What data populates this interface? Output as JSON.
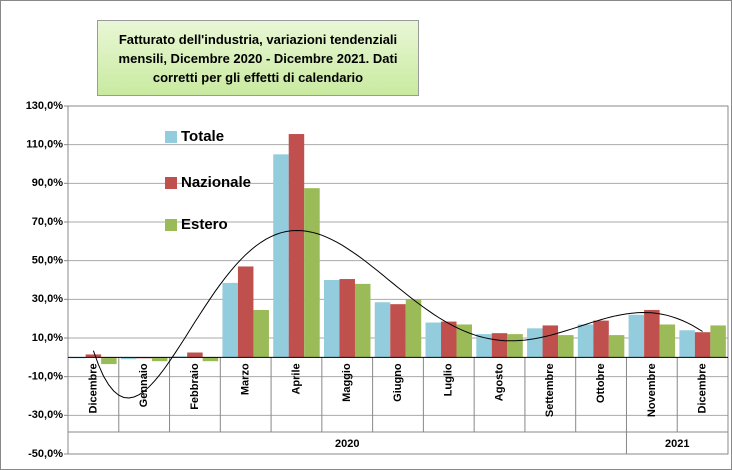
{
  "chart_data": {
    "type": "bar",
    "title": "Fatturato dell'industria, variazioni tendenziali mensili, Dicembre 2020 - Dicembre 2021. Dati corretti per gli effetti di calendario",
    "categories": [
      "Dicembre",
      "Gennaio",
      "Febbraio",
      "Marzo",
      "Aprile",
      "Maggio",
      "Giugno",
      "Luglio",
      "Agosto",
      "Settembre",
      "Ottobre",
      "Novembre",
      "Dicembre"
    ],
    "groups": [
      "2020",
      "2021"
    ],
    "series": [
      {
        "name": "Totale",
        "color": "#93cddd",
        "values": [
          -0.5,
          -1,
          0.5,
          38.5,
          105,
          40,
          28.5,
          18,
          12,
          15,
          17,
          22,
          14
        ]
      },
      {
        "name": "Nazionale",
        "color": "#c0504d",
        "values": [
          1.5,
          -0.5,
          2.5,
          47,
          115.5,
          40.5,
          27.5,
          18.5,
          12.5,
          16.5,
          19,
          24.5,
          13
        ]
      },
      {
        "name": "Estero",
        "color": "#9bbb59",
        "values": [
          -3.5,
          -2,
          -2,
          24.5,
          87.5,
          38,
          30,
          17,
          12,
          11.5,
          11.5,
          17,
          16.5
        ]
      }
    ],
    "ylim": [
      -50,
      130
    ],
    "yticks": [
      {
        "value": -50,
        "label": "-50,0%"
      },
      {
        "value": -30,
        "label": "-30,0%"
      },
      {
        "value": -10,
        "label": "-10,0%"
      },
      {
        "value": 10,
        "label": "10,0%"
      },
      {
        "value": 30,
        "label": "30,0%"
      },
      {
        "value": 50,
        "label": "50,0%"
      },
      {
        "value": 70,
        "label": "70,0%"
      },
      {
        "value": 90,
        "label": "90,0%"
      },
      {
        "value": 110,
        "label": "110,0%"
      },
      {
        "value": 130,
        "label": "130,0%"
      }
    ],
    "grid": true,
    "legend": "upper left",
    "trendline": true
  }
}
